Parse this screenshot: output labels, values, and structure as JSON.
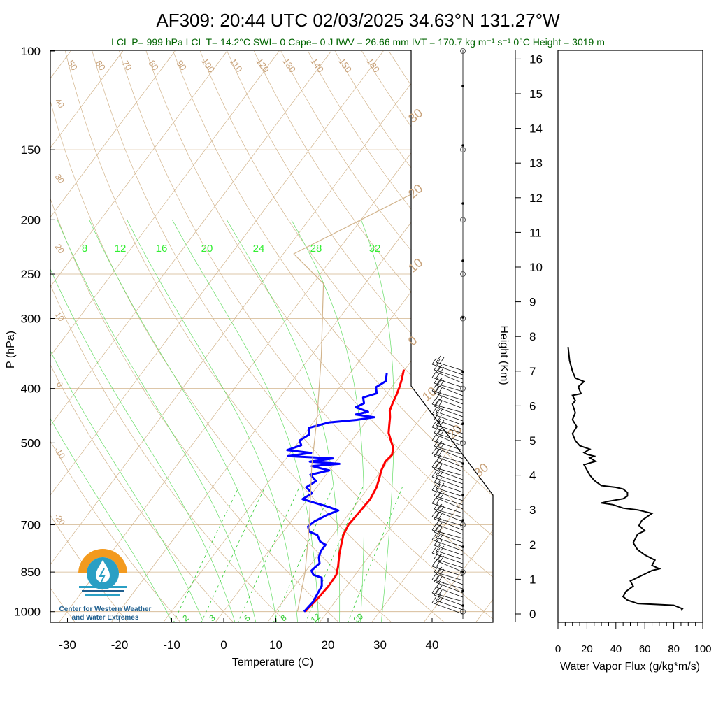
{
  "title": "AF309: 20:44 UTC 02/03/2025  34.63°N 131.27°W",
  "subtitle": "LCL P= 999 hPa  LCL T= 14.2°C  SWI= 0  Cape= 0 J  IWV = 26.66 mm  IVT = 170.7 kg m⁻¹ s⁻¹  0°C Height = 3019 m",
  "logo": {
    "line1": "Center for Western Weather",
    "line2": "and Water Extremes"
  },
  "colors": {
    "temperature": "#ff0000",
    "dewpoint": "#0000ff",
    "isotherm": "#d2b48c",
    "mixing_ratio": "#00cc00",
    "subtitle": "#006400"
  },
  "chart_data": [
    {
      "type": "line",
      "name": "skew-t",
      "xlabel": "Temperature (C)",
      "ylabel": "P (hPa)",
      "x_ticks": [
        -30,
        -20,
        -10,
        0,
        10,
        20,
        30,
        40
      ],
      "y_ticks": [
        100,
        150,
        200,
        250,
        300,
        400,
        500,
        700,
        850,
        1000
      ],
      "xlim": [
        -34,
        51
      ],
      "ylim": [
        1050,
        100
      ],
      "y_scale": "log",
      "isotherm_labels": [
        50,
        60,
        70,
        80,
        90,
        100,
        110,
        120,
        130,
        140,
        150,
        160
      ],
      "dry_adiabat_labels": [
        40,
        30,
        20,
        10,
        0,
        -10,
        -20
      ],
      "moist_adiabat_labels": [
        30,
        20,
        10,
        0,
        10,
        20,
        30
      ],
      "mixing_ratio_top_labels": [
        8,
        12,
        16,
        20,
        24,
        28,
        32
      ],
      "mixing_ratio_bottom_labels": [
        2,
        3,
        5,
        8,
        12,
        20
      ],
      "series": [
        {
          "name": "Temperature",
          "points": [
            [
              15.7,
              1000
            ],
            [
              15.8,
              985
            ],
            [
              16.2,
              950
            ],
            [
              16.5,
              900
            ],
            [
              16.4,
              860
            ],
            [
              15.5,
              830
            ],
            [
              14,
              790
            ],
            [
              13,
              760
            ],
            [
              12,
              730
            ],
            [
              11.5,
              700
            ],
            [
              11.8,
              660
            ],
            [
              12,
              630
            ],
            [
              11.5,
              600
            ],
            [
              10.8,
              580
            ],
            [
              10,
              560
            ],
            [
              9.5,
              540
            ],
            [
              9.8,
              525
            ],
            [
              9,
              510
            ],
            [
              7.5,
              495
            ],
            [
              6,
              480
            ],
            [
              5,
              465
            ],
            [
              4,
              450
            ],
            [
              3,
              438
            ],
            [
              2.5,
              425
            ],
            [
              2,
              410
            ],
            [
              1.5,
              398
            ],
            [
              0.8,
              385
            ],
            [
              -0.2,
              370
            ]
          ]
        },
        {
          "name": "Dewpoint",
          "points": [
            [
              15.5,
              1000
            ],
            [
              15.8,
              960
            ],
            [
              15.5,
              930
            ],
            [
              15.2,
              900
            ],
            [
              14,
              870
            ],
            [
              12,
              860
            ],
            [
              11,
              845
            ],
            [
              11.5,
              820
            ],
            [
              10.5,
              800
            ],
            [
              10,
              780
            ],
            [
              10,
              760
            ],
            [
              8.5,
              750
            ],
            [
              7,
              730
            ],
            [
              5,
              720
            ],
            [
              4,
              705
            ],
            [
              4.5,
              690
            ],
            [
              6,
              672
            ],
            [
              7.5,
              660
            ],
            [
              5,
              650
            ],
            [
              2,
              640
            ],
            [
              -1,
              630
            ],
            [
              0,
              615
            ],
            [
              -2,
              600
            ],
            [
              -1,
              585
            ],
            [
              -3,
              570
            ],
            [
              0,
              560
            ],
            [
              -4,
              550
            ],
            [
              1,
              545
            ],
            [
              -5,
              540
            ],
            [
              -1,
              533
            ],
            [
              -10,
              528
            ],
            [
              -6,
              521
            ],
            [
              -11,
              515
            ],
            [
              -9,
              505
            ],
            [
              -10,
              495
            ],
            [
              -9,
              483
            ],
            [
              -10,
              470
            ],
            [
              -7,
              460
            ],
            [
              -2,
              455
            ],
            [
              1,
              450
            ],
            [
              -3,
              445
            ],
            [
              -1,
              440
            ],
            [
              -4,
              432
            ],
            [
              -3,
              425
            ],
            [
              -4,
              415
            ],
            [
              -2,
              408
            ],
            [
              -3,
              398
            ],
            [
              -2,
              388
            ],
            [
              -3,
              375
            ]
          ]
        },
        {
          "name": "Parcel",
          "points": [
            [
              14.2,
              999
            ],
            [
              10,
              850
            ],
            [
              4,
              700
            ],
            [
              -4,
              550
            ],
            [
              -10,
              450
            ],
            [
              -18,
              350
            ],
            [
              -28,
              260
            ],
            [
              -38,
              230
            ],
            [
              -24,
              180
            ],
            [
              -10,
              120
            ],
            [
              0,
              100
            ]
          ]
        }
      ]
    },
    {
      "type": "line",
      "name": "water-vapor-flux",
      "xlabel": "Water Vapor Flux (g/kg*m/s)",
      "ylabel": "Height (Km)",
      "x_ticks": [
        0,
        20,
        40,
        60,
        80,
        100
      ],
      "y_ticks": [
        0,
        1,
        2,
        3,
        4,
        5,
        6,
        7,
        8,
        9,
        10,
        11,
        12,
        13,
        14,
        15,
        16
      ],
      "xlim": [
        0,
        100
      ],
      "ylim": [
        -0.3,
        16.3
      ],
      "series": [
        {
          "name": "flux",
          "points": [
            [
              85,
              0.1
            ],
            [
              86,
              0.15
            ],
            [
              80,
              0.25
            ],
            [
              55,
              0.3
            ],
            [
              48,
              0.4
            ],
            [
              45,
              0.5
            ],
            [
              47,
              0.65
            ],
            [
              52,
              0.8
            ],
            [
              50,
              0.95
            ],
            [
              55,
              1.05
            ],
            [
              60,
              1.15
            ],
            [
              65,
              1.25
            ],
            [
              70,
              1.3
            ],
            [
              65,
              1.4
            ],
            [
              67,
              1.55
            ],
            [
              60,
              1.7
            ],
            [
              55,
              1.85
            ],
            [
              52,
              2.05
            ],
            [
              55,
              2.3
            ],
            [
              60,
              2.4
            ],
            [
              56,
              2.55
            ],
            [
              58,
              2.7
            ],
            [
              65,
              2.9
            ],
            [
              55,
              3
            ],
            [
              45,
              3.05
            ],
            [
              38,
              3.15
            ],
            [
              30,
              3.2
            ],
            [
              35,
              3.25
            ],
            [
              45,
              3.32
            ],
            [
              48,
              3.4
            ],
            [
              48,
              3.5
            ],
            [
              45,
              3.6
            ],
            [
              40,
              3.65
            ],
            [
              30,
              3.7
            ],
            [
              25,
              3.85
            ],
            [
              22,
              4
            ],
            [
              20,
              4.15
            ],
            [
              18,
              4.3
            ],
            [
              22,
              4.35
            ],
            [
              26,
              4.4
            ],
            [
              22,
              4.5
            ],
            [
              25,
              4.55
            ],
            [
              20,
              4.6
            ],
            [
              18,
              4.65
            ],
            [
              22,
              4.75
            ],
            [
              15,
              4.85
            ],
            [
              12,
              5
            ],
            [
              10,
              5.2
            ],
            [
              13,
              5.4
            ],
            [
              10,
              5.6
            ],
            [
              12,
              5.8
            ],
            [
              10,
              6.05
            ],
            [
              12,
              6.15
            ],
            [
              10,
              6.3
            ],
            [
              16,
              6.35
            ],
            [
              15,
              6.45
            ],
            [
              14,
              6.55
            ],
            [
              18,
              6.7
            ],
            [
              12,
              6.8
            ],
            [
              10,
              7
            ],
            [
              8,
              7.3
            ],
            [
              7,
              7.7
            ]
          ]
        }
      ]
    }
  ]
}
